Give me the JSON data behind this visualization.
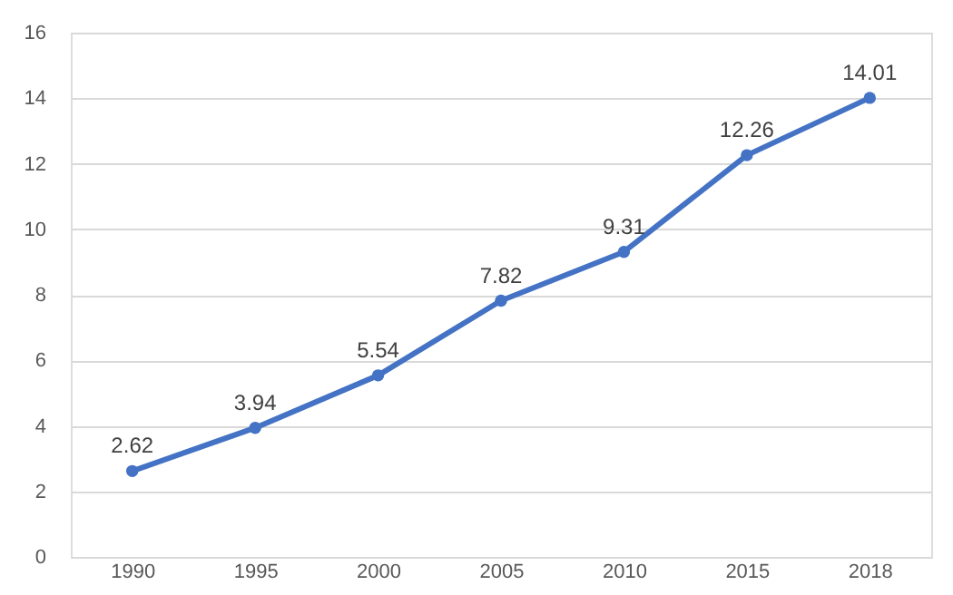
{
  "chart_data": {
    "type": "line",
    "categories": [
      "1990",
      "1995",
      "2000",
      "2005",
      "2010",
      "2015",
      "2018"
    ],
    "series": [
      {
        "color": "#4472c4",
        "values": [
          2.62,
          3.94,
          5.54,
          7.82,
          9.31,
          12.26,
          14.01
        ]
      }
    ],
    "ylim": [
      0,
      16
    ],
    "yticks": [
      0,
      2,
      4,
      6,
      8,
      10,
      12,
      14,
      16
    ],
    "grid": "y",
    "marker": "circle",
    "line_style": "solid",
    "data_labels": true,
    "legend": false
  }
}
